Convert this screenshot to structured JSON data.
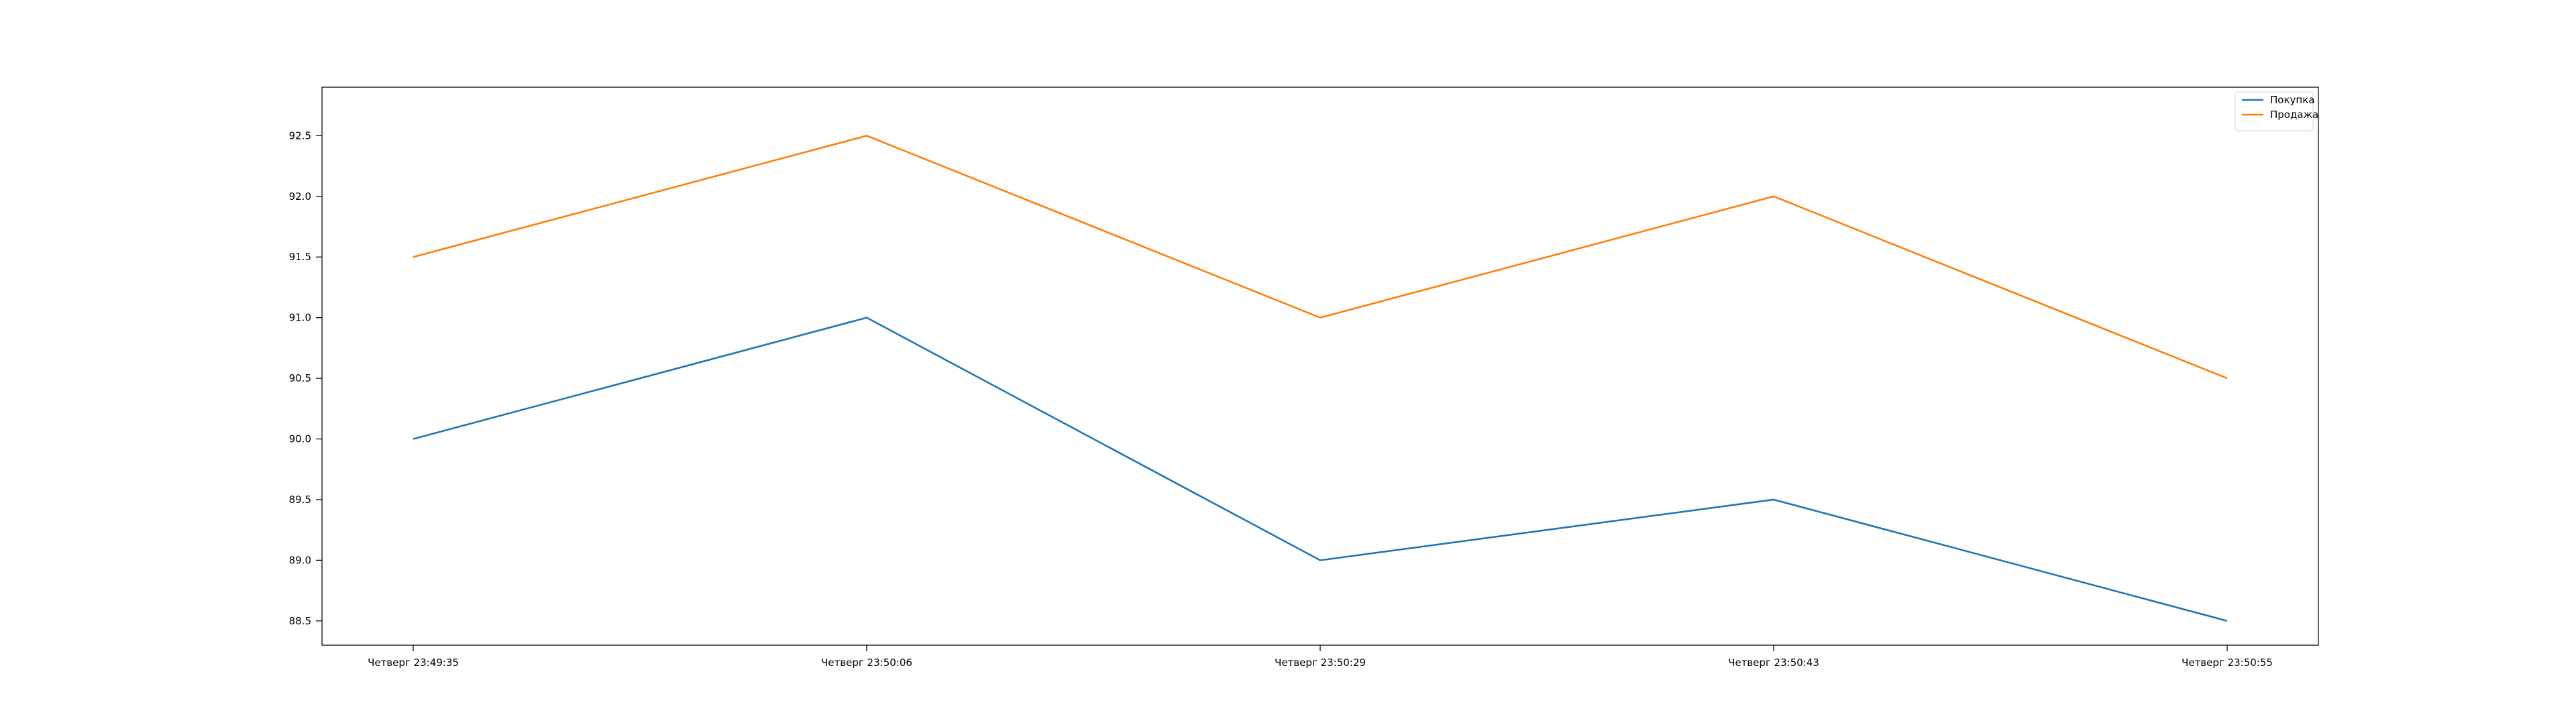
{
  "chart_data": {
    "type": "line",
    "title": "",
    "xlabel": "",
    "ylabel": "",
    "categories": [
      "Четверг 23:49:35",
      "Четверг 23:50:06",
      "Четверг 23:50:29",
      "Четверг 23:50:43",
      "Четверг 23:50:55"
    ],
    "series": [
      {
        "name": "Покупка",
        "color": "#1f77b4",
        "values": [
          90.0,
          91.0,
          89.0,
          89.5,
          88.5
        ]
      },
      {
        "name": "Продажа",
        "color": "#ff7f0e",
        "values": [
          91.5,
          92.5,
          91.0,
          92.0,
          90.5
        ]
      }
    ],
    "yticks": [
      "88.5",
      "89.0",
      "89.5",
      "90.0",
      "90.5",
      "91.0",
      "91.5",
      "92.0",
      "92.5"
    ],
    "ylim": [
      88.3,
      92.9
    ],
    "grid": false,
    "legend_position": "top-right"
  }
}
